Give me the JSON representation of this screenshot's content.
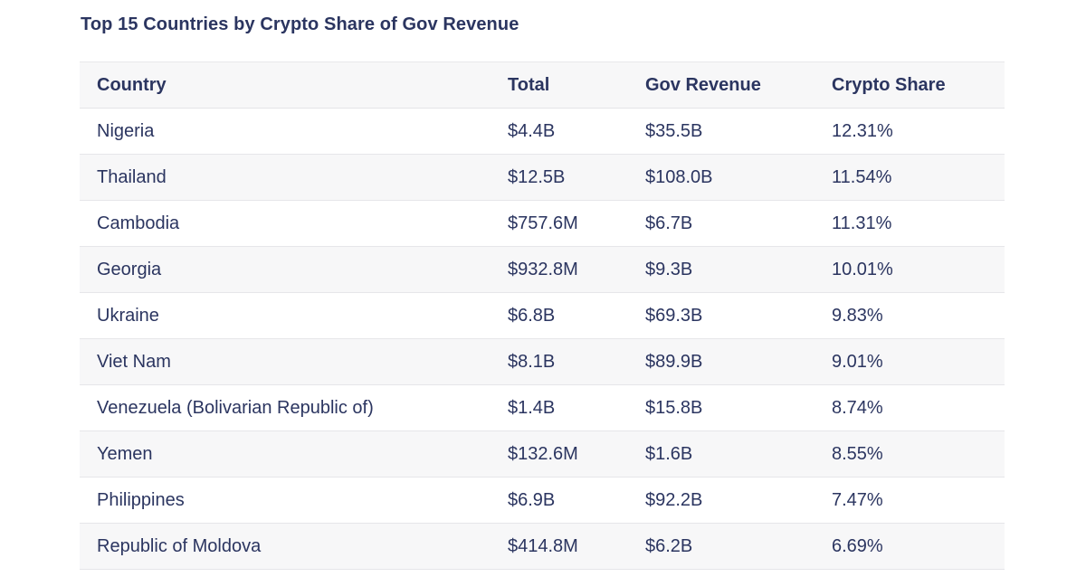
{
  "title": "Top 15 Countries by Crypto Share of Gov Revenue",
  "table": {
    "headers": [
      "Country",
      "Total",
      "Gov Revenue",
      "Crypto Share"
    ],
    "rows": [
      [
        "Nigeria",
        "$4.4B",
        "$35.5B",
        "12.31%"
      ],
      [
        "Thailand",
        "$12.5B",
        "$108.0B",
        "11.54%"
      ],
      [
        "Cambodia",
        "$757.6M",
        "$6.7B",
        "11.31%"
      ],
      [
        "Georgia",
        "$932.8M",
        "$9.3B",
        "10.01%"
      ],
      [
        "Ukraine",
        "$6.8B",
        "$69.3B",
        "9.83%"
      ],
      [
        "Viet Nam",
        "$8.1B",
        "$89.9B",
        "9.01%"
      ],
      [
        "Venezuela (Bolivarian Republic of)",
        "$1.4B",
        "$15.8B",
        "8.74%"
      ],
      [
        "Yemen",
        "$132.6M",
        "$1.6B",
        "8.55%"
      ],
      [
        "Philippines",
        "$6.9B",
        "$92.2B",
        "7.47%"
      ],
      [
        "Republic of Moldova",
        "$414.8M",
        "$6.2B",
        "6.69%"
      ]
    ]
  },
  "colors": {
    "text": "#2b3560",
    "stripe": "#f7f7f8",
    "border": "#e6e6e9"
  }
}
